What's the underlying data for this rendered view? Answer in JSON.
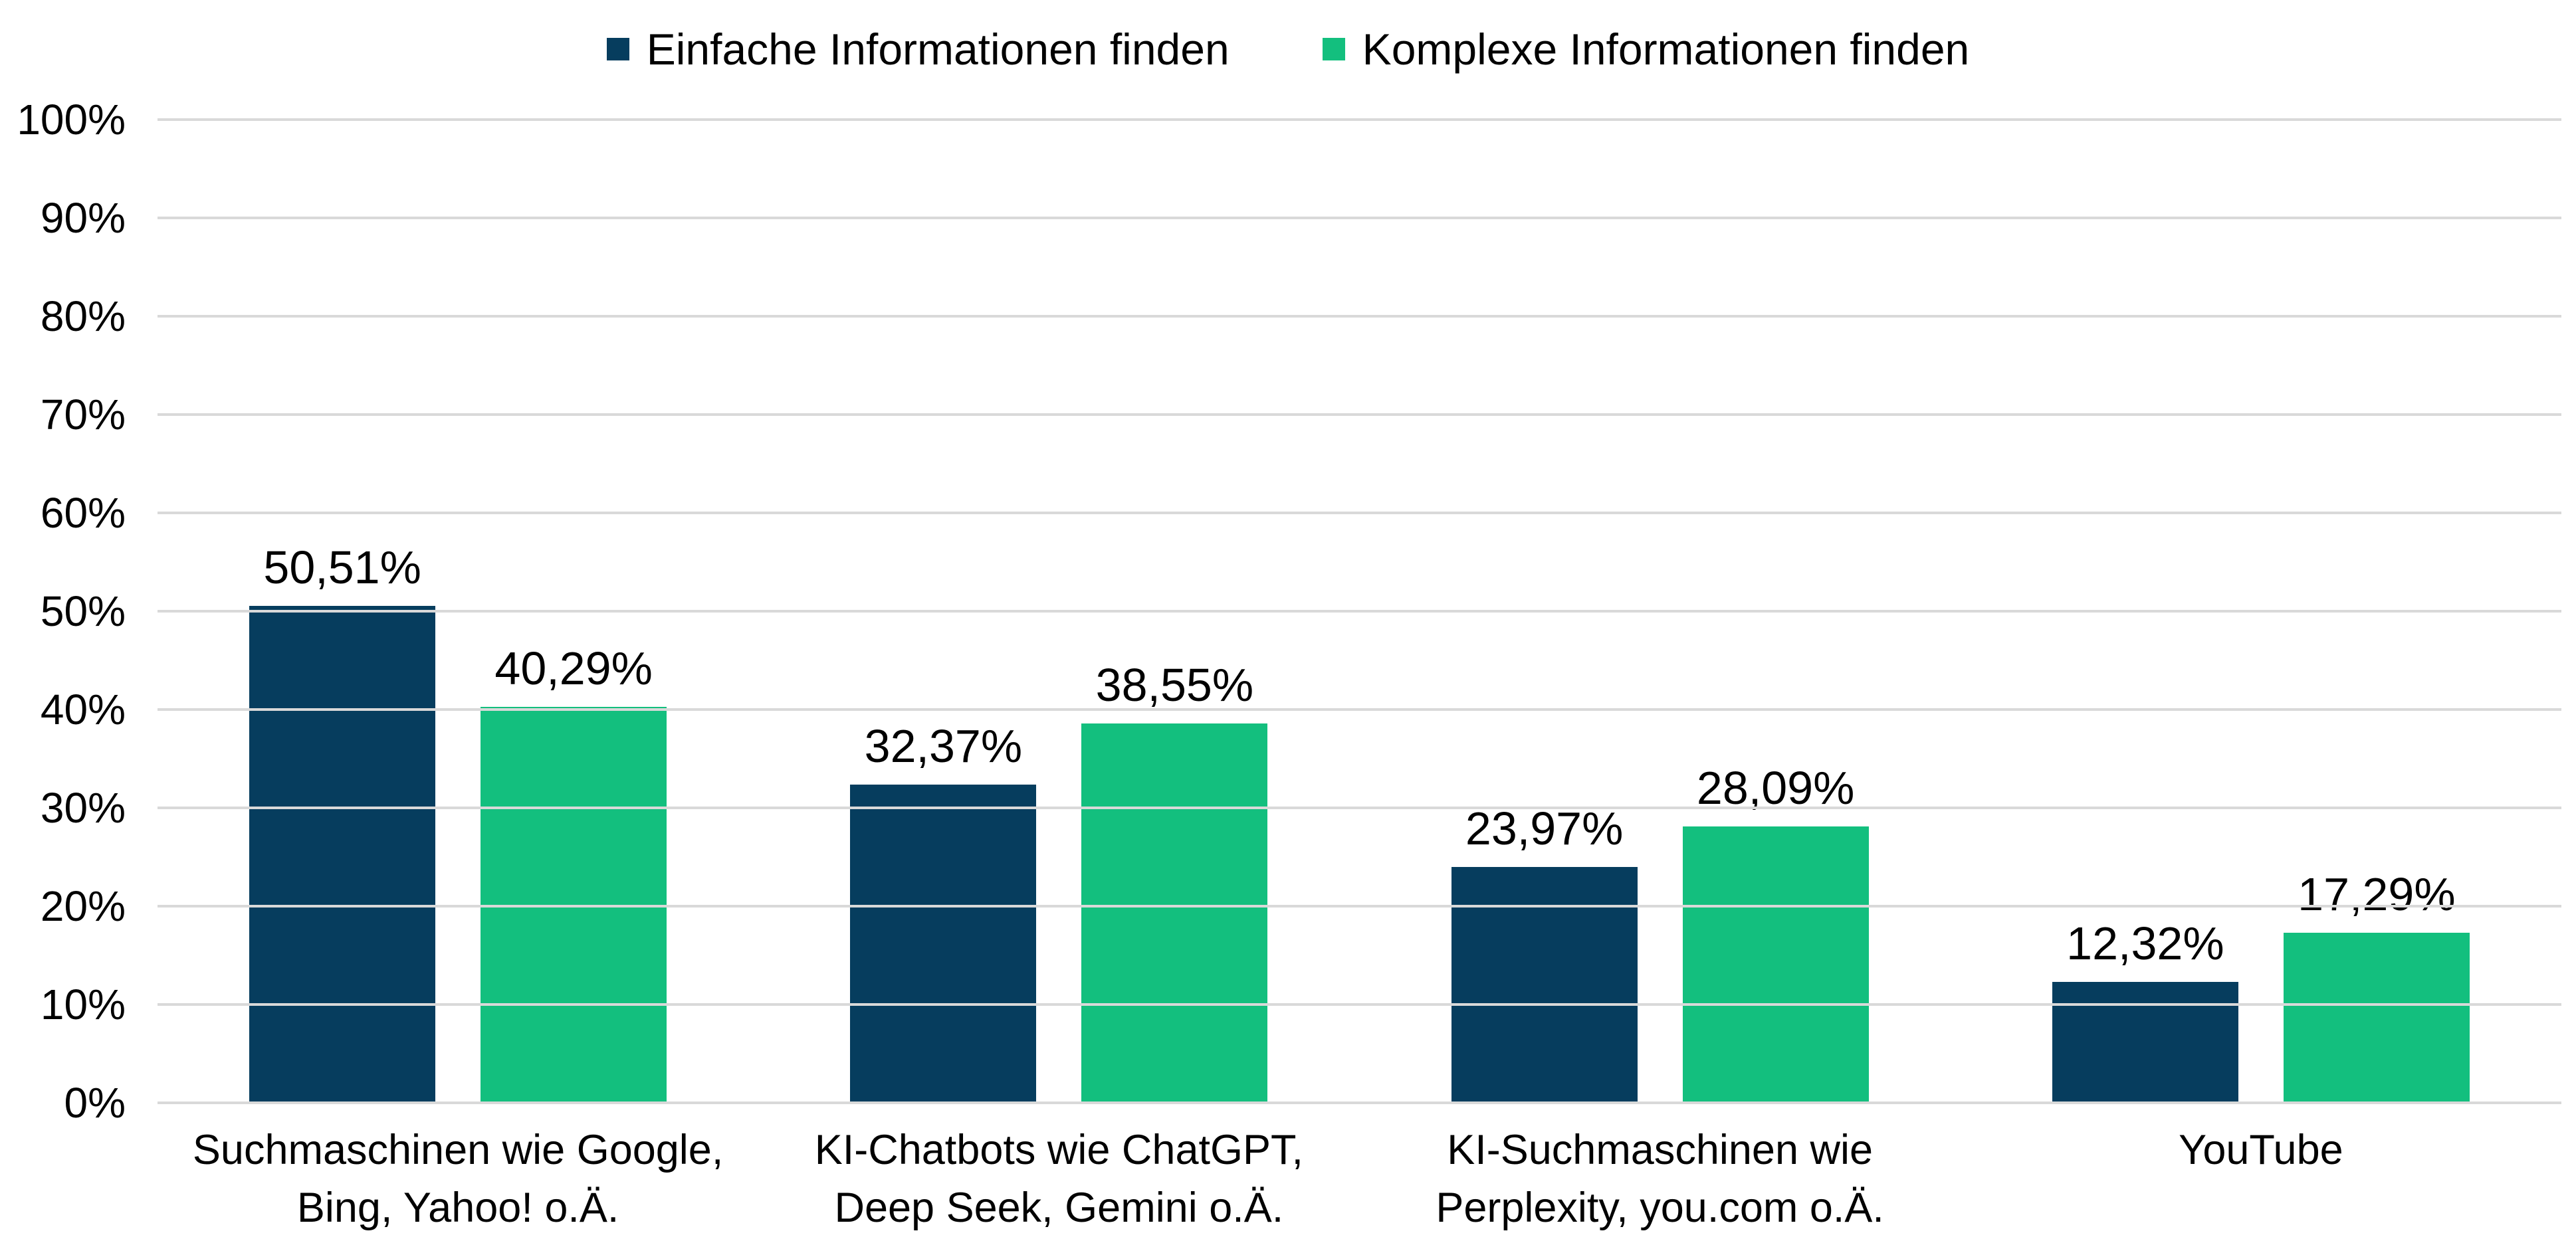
{
  "colors": {
    "series_einfach": "#063D5E",
    "series_komplex": "#13BF7E",
    "gridline": "#D9D9D9",
    "text": "#000000",
    "background": "#FFFFFF"
  },
  "chart_data": {
    "type": "bar",
    "title": "",
    "xlabel": "",
    "ylabel": "",
    "ylim": [
      0,
      100
    ],
    "y_ticks": [
      "0%",
      "10%",
      "20%",
      "30%",
      "40%",
      "50%",
      "60%",
      "70%",
      "80%",
      "90%",
      "100%"
    ],
    "grid": true,
    "legend_position": "top",
    "categories": [
      "Suchmaschinen wie Google, Bing, Yahoo! o.Ä.",
      "KI-Chatbots wie ChatGPT, Deep Seek, Gemini o.Ä.",
      "KI-Suchmaschinen wie Perplexity, you.com o.Ä.",
      "YouTube"
    ],
    "series": [
      {
        "name": "Einfache Informationen finden",
        "color": "#063D5E",
        "values": [
          50.51,
          32.37,
          23.97,
          12.32
        ],
        "labels": [
          "50,51%",
          "32,37%",
          "23,97%",
          "12,32%"
        ]
      },
      {
        "name": "Komplexe Informationen finden",
        "color": "#13BF7E",
        "values": [
          40.29,
          38.55,
          28.09,
          17.29
        ],
        "labels": [
          "40,29%",
          "38,55%",
          "28,09%",
          "17,29%"
        ]
      }
    ]
  }
}
